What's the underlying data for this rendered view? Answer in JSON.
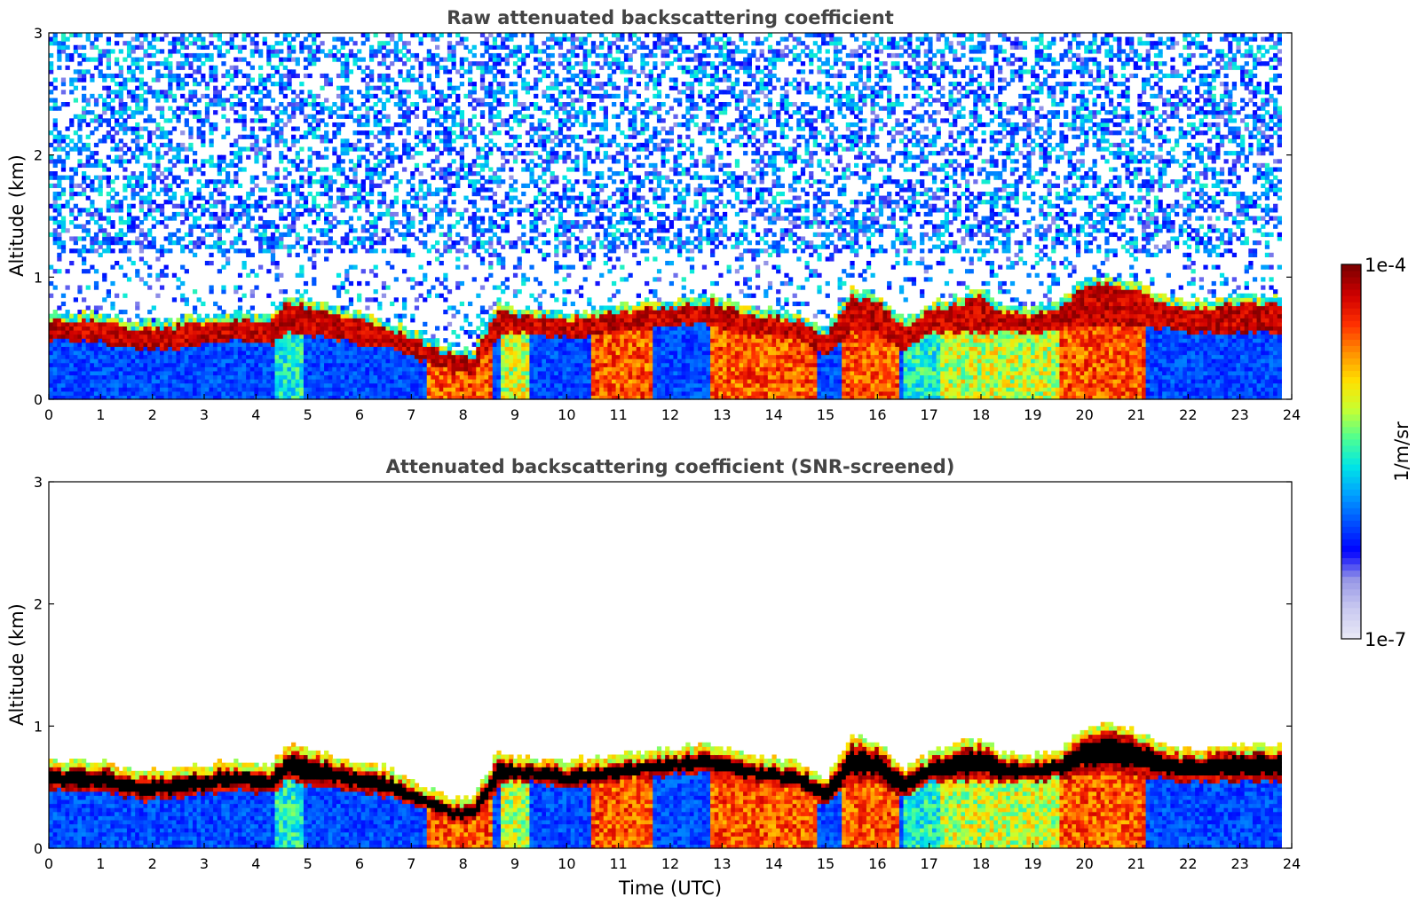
{
  "colors": {
    "jet_scale": [
      "#e6e6f5",
      "#c8c8f0",
      "#9696e6",
      "#0000ff",
      "#0050ff",
      "#00a0ff",
      "#00e6e6",
      "#50ff90",
      "#c8ff30",
      "#ffe000",
      "#ff9000",
      "#ff3000",
      "#d00000",
      "#800000"
    ],
    "saturated_screened": "#000000"
  },
  "colorbar": {
    "label": "1/m/sr",
    "min_label": "1e-7",
    "max_label": "1e-4",
    "scale": "log"
  },
  "chart_data": [
    {
      "type": "heatmap",
      "title": "Raw attenuated backscattering coefficient",
      "xlabel": "",
      "ylabel": "Altitude (km)",
      "xlim": [
        0,
        24
      ],
      "ylim": [
        0,
        3
      ],
      "x_ticks": [
        "0",
        "1",
        "2",
        "3",
        "4",
        "5",
        "6",
        "7",
        "8",
        "9",
        "10",
        "11",
        "12",
        "13",
        "14",
        "15",
        "16",
        "17",
        "18",
        "19",
        "20",
        "21",
        "22",
        "23",
        "24"
      ],
      "y_ticks": [
        "0",
        "1",
        "2",
        "3"
      ],
      "data_end_time": 23.8,
      "layer_profile": {
        "time": [
          0,
          1,
          1.8,
          2.5,
          3.5,
          4.3,
          4.6,
          5.5,
          6.5,
          7.3,
          7.8,
          8.2,
          8.7,
          9,
          10,
          11,
          12,
          12.8,
          13.5,
          14.5,
          15,
          15.5,
          16,
          16.5,
          17,
          18,
          18.5,
          19,
          19.5,
          20,
          20.5,
          21,
          21.5,
          22,
          23,
          23.8
        ],
        "top_km": [
          0.65,
          0.65,
          0.57,
          0.6,
          0.65,
          0.62,
          0.8,
          0.7,
          0.6,
          0.45,
          0.35,
          0.35,
          0.75,
          0.7,
          0.65,
          0.72,
          0.75,
          0.8,
          0.7,
          0.65,
          0.5,
          0.85,
          0.8,
          0.6,
          0.72,
          0.85,
          0.7,
          0.7,
          0.75,
          0.92,
          0.95,
          0.9,
          0.8,
          0.75,
          0.78,
          0.8
        ],
        "base_km": [
          0.48,
          0.47,
          0.4,
          0.42,
          0.48,
          0.45,
          0.55,
          0.5,
          0.42,
          0.32,
          0.22,
          0.22,
          0.52,
          0.55,
          0.5,
          0.55,
          0.6,
          0.62,
          0.55,
          0.48,
          0.35,
          0.55,
          0.55,
          0.4,
          0.55,
          0.55,
          0.55,
          0.55,
          0.57,
          0.6,
          0.62,
          0.6,
          0.58,
          0.55,
          0.55,
          0.55
        ]
      },
      "precipitation_periods": [
        {
          "start": 4.4,
          "end": 4.9,
          "intensity": "light"
        },
        {
          "start": 7.3,
          "end": 8.6,
          "intensity": "strong"
        },
        {
          "start": 8.7,
          "end": 9.3,
          "intensity": "moderate"
        },
        {
          "start": 10.5,
          "end": 11.7,
          "intensity": "strong"
        },
        {
          "start": 12.8,
          "end": 14.8,
          "intensity": "strong"
        },
        {
          "start": 15.3,
          "end": 16.45,
          "intensity": "strong"
        },
        {
          "start": 16.5,
          "end": 17.2,
          "intensity": "light"
        },
        {
          "start": 17.2,
          "end": 19.5,
          "intensity": "moderate"
        },
        {
          "start": 19.5,
          "end": 21.2,
          "intensity": "strong"
        }
      ],
      "noise_above_layer": true
    },
    {
      "type": "heatmap",
      "title": "Attenuated backscattering coefficient (SNR-screened)",
      "xlabel": "Time (UTC)",
      "ylabel": "Altitude (km)",
      "xlim": [
        0,
        24
      ],
      "ylim": [
        0,
        3
      ],
      "x_ticks": [
        "0",
        "1",
        "2",
        "3",
        "4",
        "5",
        "6",
        "7",
        "8",
        "9",
        "10",
        "11",
        "12",
        "13",
        "14",
        "15",
        "16",
        "17",
        "18",
        "19",
        "20",
        "21",
        "22",
        "23",
        "24"
      ],
      "y_ticks": [
        "0",
        "1",
        "2",
        "3"
      ],
      "data_end_time": 23.8,
      "noise_above_layer": false
    }
  ]
}
